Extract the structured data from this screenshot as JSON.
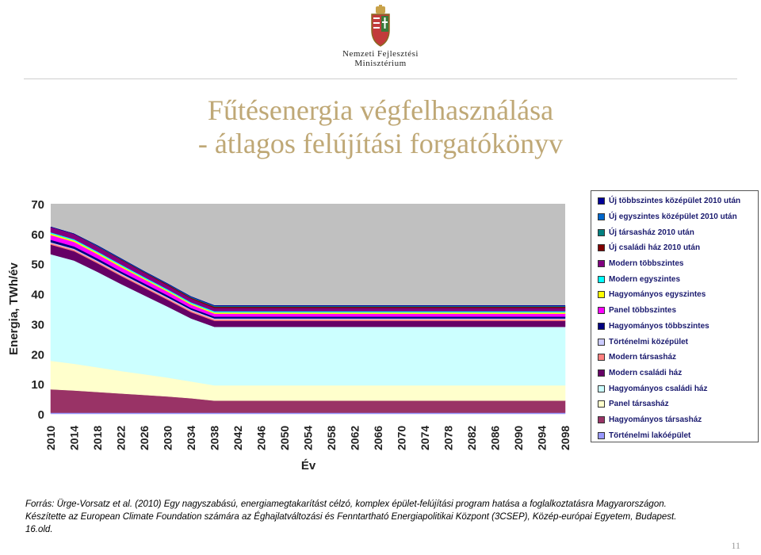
{
  "header": {
    "logo_line1": "Nemzeti Fejlesztési",
    "logo_line2": "Minisztérium"
  },
  "slide": {
    "title_line1": "Fűtésenergia végfelhasználása",
    "title_line2": "- átlagos felújítási forgatókönyv",
    "source_line1": "Forrás: Ürge-Vorsatz et al. (2010) Egy nagyszabású, energiamegtakarítást célzó, komplex épület-felújítási program hatása a foglalkoztatásra Magyarországon.",
    "source_line2": "Készítette az European Climate Foundation számára az Éghajlatváltozási és Fenntartható Energiapolitikai Központ (3CSEP), Közép-európai Egyetem, Budapest.",
    "source_line3": "16.old.",
    "page_number": "11"
  },
  "chart_data": {
    "type": "area",
    "stacked": true,
    "xlabel": "Év",
    "ylabel": "Energia, TWh/év",
    "ylim": [
      0,
      70
    ],
    "yticks": [
      0,
      10,
      20,
      30,
      40,
      50,
      60,
      70
    ],
    "x": [
      2010,
      2014,
      2018,
      2022,
      2026,
      2030,
      2034,
      2038,
      2042,
      2046,
      2050,
      2054,
      2058,
      2062,
      2066,
      2070,
      2074,
      2078,
      2082,
      2086,
      2090,
      2094,
      2098
    ],
    "background_color": "#c0c0c0",
    "legend_position": "right",
    "series": [
      {
        "name": "Történelmi lakóépület",
        "color": "#9999ff",
        "values": [
          0.4,
          0.4,
          0.4,
          0.4,
          0.4,
          0.4,
          0.4,
          0.4,
          0.4,
          0.4,
          0.4,
          0.4,
          0.4,
          0.4,
          0.4,
          0.4,
          0.4,
          0.4,
          0.4,
          0.4,
          0.4,
          0.4,
          0.4
        ]
      },
      {
        "name": "Hagyományos társasház",
        "color": "#993366",
        "values": [
          7.8,
          7.4,
          6.9,
          6.4,
          5.9,
          5.4,
          4.8,
          4.0,
          4.0,
          4.0,
          4.0,
          4.0,
          4.0,
          4.0,
          4.0,
          4.0,
          4.0,
          4.0,
          4.0,
          4.0,
          4.0,
          4.0,
          4.0
        ]
      },
      {
        "name": "Panel társasház",
        "color": "#ffffcc",
        "values": [
          9.5,
          8.9,
          8.2,
          7.5,
          6.9,
          6.3,
          5.6,
          5.1,
          5.1,
          5.1,
          5.1,
          5.1,
          5.1,
          5.1,
          5.1,
          5.1,
          5.1,
          5.1,
          5.1,
          5.1,
          5.1,
          5.1,
          5.1
        ]
      },
      {
        "name": "Hagyományos családi ház",
        "color": "#ccffff",
        "values": [
          35.5,
          34.4,
          31.8,
          29.0,
          26.3,
          23.6,
          21.0,
          19.5,
          19.5,
          19.5,
          19.5,
          19.5,
          19.5,
          19.5,
          19.5,
          19.5,
          19.5,
          19.5,
          19.5,
          19.5,
          19.5,
          19.5,
          19.5
        ]
      },
      {
        "name": "Modern családi ház",
        "color": "#660066",
        "values": [
          3.2,
          3.1,
          2.9,
          2.7,
          2.5,
          2.3,
          2.1,
          2.0,
          2.0,
          2.0,
          2.0,
          2.0,
          2.0,
          2.0,
          2.0,
          2.0,
          2.0,
          2.0,
          2.0,
          2.0,
          2.0,
          2.0,
          2.0
        ]
      },
      {
        "name": "Modern társasház",
        "color": "#ff8080",
        "values": [
          0.5,
          0.5,
          0.5,
          0.5,
          0.5,
          0.5,
          0.5,
          0.5,
          0.5,
          0.5,
          0.5,
          0.5,
          0.5,
          0.5,
          0.5,
          0.5,
          0.5,
          0.5,
          0.5,
          0.5,
          0.5,
          0.5,
          0.5
        ]
      },
      {
        "name": "Történelmi középület",
        "color": "#ccccff",
        "values": [
          0.3,
          0.3,
          0.3,
          0.3,
          0.3,
          0.3,
          0.3,
          0.3,
          0.3,
          0.3,
          0.3,
          0.3,
          0.3,
          0.3,
          0.3,
          0.3,
          0.3,
          0.3,
          0.3,
          0.3,
          0.3,
          0.3,
          0.3
        ]
      },
      {
        "name": "Hagyományos többszintes",
        "color": "#000080",
        "values": [
          0.8,
          0.8,
          0.8,
          0.7,
          0.7,
          0.7,
          0.6,
          0.6,
          0.6,
          0.6,
          0.6,
          0.6,
          0.6,
          0.6,
          0.6,
          0.6,
          0.6,
          0.6,
          0.6,
          0.6,
          0.6,
          0.6,
          0.6
        ]
      },
      {
        "name": "Panel többszintes",
        "color": "#ff00ff",
        "values": [
          1.6,
          1.5,
          1.4,
          1.4,
          1.3,
          1.2,
          1.1,
          1.0,
          1.0,
          1.0,
          1.0,
          1.0,
          1.0,
          1.0,
          1.0,
          1.0,
          1.0,
          1.0,
          1.0,
          1.0,
          1.0,
          1.0,
          1.0
        ]
      },
      {
        "name": "Hagyományos egyszintes",
        "color": "#ffff00",
        "values": [
          0.5,
          0.5,
          0.5,
          0.5,
          0.4,
          0.4,
          0.4,
          0.4,
          0.4,
          0.4,
          0.4,
          0.4,
          0.4,
          0.4,
          0.4,
          0.4,
          0.4,
          0.4,
          0.4,
          0.4,
          0.4,
          0.4,
          0.4
        ]
      },
      {
        "name": "Modern egyszintes",
        "color": "#00ffff",
        "values": [
          0.4,
          0.4,
          0.4,
          0.4,
          0.4,
          0.4,
          0.4,
          0.4,
          0.4,
          0.4,
          0.4,
          0.4,
          0.4,
          0.4,
          0.4,
          0.4,
          0.4,
          0.4,
          0.4,
          0.4,
          0.4,
          0.4,
          0.4
        ]
      },
      {
        "name": "Modern többszintes",
        "color": "#800080",
        "values": [
          1.8,
          1.7,
          1.6,
          1.5,
          1.4,
          1.3,
          1.2,
          1.1,
          1.1,
          1.1,
          1.1,
          1.1,
          1.1,
          1.1,
          1.1,
          1.1,
          1.1,
          1.1,
          1.1,
          1.1,
          1.1,
          1.1,
          1.1
        ]
      },
      {
        "name": "Új családi ház 2010 után",
        "color": "#800000",
        "values": [
          0.0,
          0.1,
          0.1,
          0.2,
          0.2,
          0.3,
          0.3,
          0.4,
          0.4,
          0.4,
          0.4,
          0.4,
          0.4,
          0.4,
          0.4,
          0.4,
          0.4,
          0.4,
          0.4,
          0.4,
          0.4,
          0.4,
          0.4
        ]
      },
      {
        "name": "Új társasház 2010 után",
        "color": "#008080",
        "values": [
          0.0,
          0.0,
          0.1,
          0.1,
          0.1,
          0.1,
          0.2,
          0.2,
          0.2,
          0.2,
          0.2,
          0.2,
          0.2,
          0.2,
          0.2,
          0.2,
          0.2,
          0.2,
          0.2,
          0.2,
          0.2,
          0.2,
          0.2
        ]
      },
      {
        "name": "Új egyszintes középület 2010 után",
        "color": "#0066cc",
        "values": [
          0.0,
          0.0,
          0.1,
          0.1,
          0.1,
          0.1,
          0.1,
          0.1,
          0.1,
          0.1,
          0.1,
          0.1,
          0.1,
          0.1,
          0.1,
          0.1,
          0.1,
          0.1,
          0.1,
          0.1,
          0.1,
          0.1,
          0.1
        ]
      },
      {
        "name": "Új többszintes középület 2010 után",
        "color": "#000099",
        "values": [
          0.0,
          0.0,
          0.1,
          0.1,
          0.1,
          0.1,
          0.1,
          0.1,
          0.1,
          0.1,
          0.1,
          0.1,
          0.1,
          0.1,
          0.1,
          0.1,
          0.1,
          0.1,
          0.1,
          0.1,
          0.1,
          0.1,
          0.1
        ]
      }
    ]
  }
}
